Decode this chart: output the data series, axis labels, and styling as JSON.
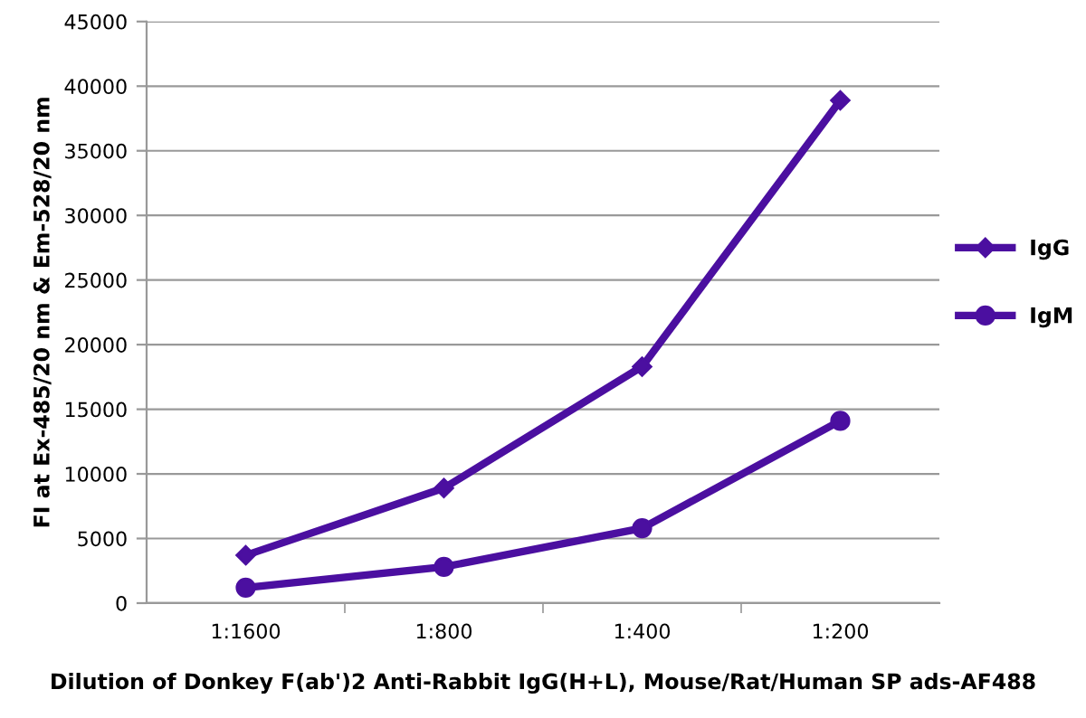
{
  "chart_data": {
    "type": "line",
    "xlabel": "Dilution of Donkey F(ab')2 Anti-Rabbit IgG(H+L), Mouse/Rat/Human SP ads-AF488",
    "ylabel": "FI at Ex-485/20 nm & Em-528/20 nm",
    "categories": [
      "1:1600",
      "1:800",
      "1:400",
      "1:200"
    ],
    "series": [
      {
        "name": "IgG",
        "color": "#4b0fa0",
        "marker": "diamond",
        "values": [
          3700,
          8900,
          18300,
          38900
        ]
      },
      {
        "name": "IgM",
        "color": "#4b0fa0",
        "marker": "circle",
        "values": [
          1200,
          2800,
          5800,
          14100
        ]
      }
    ],
    "ylim": [
      0,
      45000
    ],
    "yticks": [
      0,
      5000,
      10000,
      15000,
      20000,
      25000,
      30000,
      35000,
      40000,
      45000
    ],
    "grid": "y",
    "legend": "right"
  }
}
